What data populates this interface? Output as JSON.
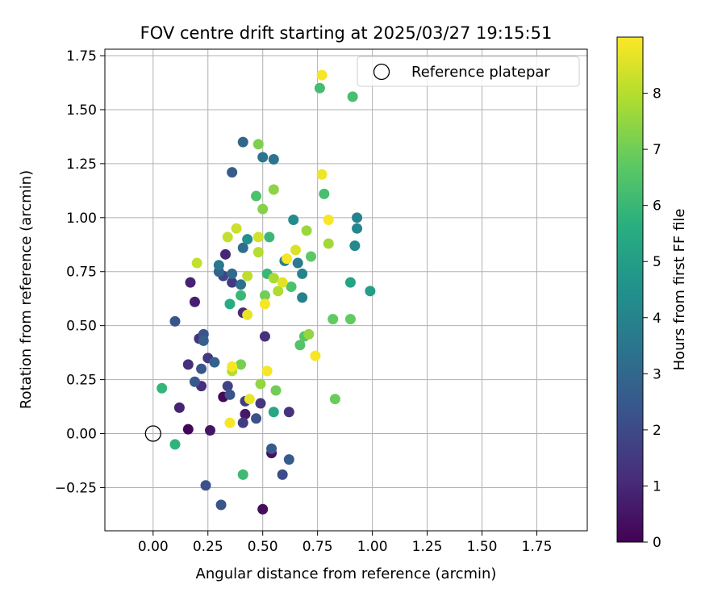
{
  "chart_data": {
    "type": "scatter",
    "title": "FOV centre drift starting at 2025/03/27 19:15:51",
    "xlabel": "Angular distance from reference (arcmin)",
    "ylabel": "Rotation from reference (arcmin)",
    "xlim": [
      -0.22,
      1.98
    ],
    "ylim": [
      -0.45,
      1.78
    ],
    "x_ticks": [
      0.0,
      0.25,
      0.5,
      0.75,
      1.0,
      1.25,
      1.5,
      1.75
    ],
    "x_tick_labels": [
      "0.00",
      "0.25",
      "0.50",
      "0.75",
      "1.00",
      "1.25",
      "1.50",
      "1.75"
    ],
    "y_ticks": [
      -0.25,
      0.0,
      0.25,
      0.5,
      0.75,
      1.0,
      1.25,
      1.5,
      1.75
    ],
    "y_tick_labels": [
      "−0.25",
      "0.00",
      "0.25",
      "0.50",
      "0.75",
      "1.00",
      "1.25",
      "1.50",
      "1.75"
    ],
    "grid": true,
    "legend": {
      "position": "top-right",
      "entries": [
        {
          "label": "Reference platepar",
          "marker": "open-circle",
          "x": 0.0,
          "y": 0.0
        }
      ]
    },
    "colorbar": {
      "label": "Hours from first FF file",
      "colormap": "viridis",
      "range": [
        0,
        9
      ],
      "ticks": [
        0,
        1,
        2,
        3,
        4,
        5,
        6,
        7,
        8
      ],
      "tick_labels": [
        "0",
        "1",
        "2",
        "3",
        "4",
        "5",
        "6",
        "7",
        "8"
      ]
    },
    "points": [
      {
        "x": 0.16,
        "y": 0.02,
        "h": 0.1
      },
      {
        "x": 0.32,
        "y": 0.17,
        "h": 0.2
      },
      {
        "x": 0.5,
        "y": -0.35,
        "h": 0.3
      },
      {
        "x": 0.54,
        "y": -0.09,
        "h": 0.4
      },
      {
        "x": 0.26,
        "y": 0.015,
        "h": 0.5
      },
      {
        "x": 0.42,
        "y": 0.09,
        "h": 0.6
      },
      {
        "x": 0.33,
        "y": 0.83,
        "h": 1.0
      },
      {
        "x": 0.19,
        "y": 0.61,
        "h": 0.8
      },
      {
        "x": 0.17,
        "y": 0.7,
        "h": 0.9
      },
      {
        "x": 0.12,
        "y": 0.12,
        "h": 0.9
      },
      {
        "x": 0.41,
        "y": 0.56,
        "h": 1.1
      },
      {
        "x": 0.16,
        "y": 0.32,
        "h": 1.2
      },
      {
        "x": 0.21,
        "y": 0.44,
        "h": 1.3
      },
      {
        "x": 0.49,
        "y": 0.14,
        "h": 1.4
      },
      {
        "x": 0.51,
        "y": 0.45,
        "h": 1.2
      },
      {
        "x": 0.62,
        "y": 0.1,
        "h": 1.3
      },
      {
        "x": 0.22,
        "y": 0.22,
        "h": 1.2
      },
      {
        "x": 0.36,
        "y": 0.7,
        "h": 1.5
      },
      {
        "x": 0.41,
        "y": 0.05,
        "h": 1.6
      },
      {
        "x": 0.25,
        "y": 0.35,
        "h": 1.5
      },
      {
        "x": 0.34,
        "y": 0.22,
        "h": 1.8
      },
      {
        "x": 0.42,
        "y": 0.15,
        "h": 1.7
      },
      {
        "x": 0.32,
        "y": 0.73,
        "h": 1.9
      },
      {
        "x": 0.59,
        "y": -0.19,
        "h": 2.1
      },
      {
        "x": 0.47,
        "y": 0.07,
        "h": 2.2
      },
      {
        "x": 0.35,
        "y": 0.18,
        "h": 2.3
      },
      {
        "x": 0.24,
        "y": -0.24,
        "h": 2.2
      },
      {
        "x": 0.31,
        "y": -0.33,
        "h": 2.4
      },
      {
        "x": 0.54,
        "y": -0.07,
        "h": 2.5
      },
      {
        "x": 0.62,
        "y": -0.12,
        "h": 2.6
      },
      {
        "x": 0.22,
        "y": 0.3,
        "h": 2.4
      },
      {
        "x": 0.23,
        "y": 0.46,
        "h": 2.4
      },
      {
        "x": 0.1,
        "y": 0.52,
        "h": 2.4
      },
      {
        "x": 0.19,
        "y": 0.24,
        "h": 2.5
      },
      {
        "x": 0.36,
        "y": 1.21,
        "h": 2.6
      },
      {
        "x": 0.23,
        "y": 0.43,
        "h": 2.7
      },
      {
        "x": 0.28,
        "y": 0.33,
        "h": 2.8
      },
      {
        "x": 0.3,
        "y": 0.75,
        "h": 2.9
      },
      {
        "x": 0.41,
        "y": 1.35,
        "h": 3.0
      },
      {
        "x": 0.36,
        "y": 0.74,
        "h": 3.1
      },
      {
        "x": 0.41,
        "y": 0.86,
        "h": 3.2
      },
      {
        "x": 0.4,
        "y": 0.69,
        "h": 3.3
      },
      {
        "x": 0.55,
        "y": 1.27,
        "h": 3.4
      },
      {
        "x": 0.5,
        "y": 1.28,
        "h": 3.5
      },
      {
        "x": 0.3,
        "y": 0.78,
        "h": 3.6
      },
      {
        "x": 0.66,
        "y": 0.79,
        "h": 3.7
      },
      {
        "x": 0.6,
        "y": 0.8,
        "h": 3.8
      },
      {
        "x": 0.68,
        "y": 0.63,
        "h": 3.9
      },
      {
        "x": 0.68,
        "y": 0.74,
        "h": 4.0
      },
      {
        "x": 0.93,
        "y": 1.0,
        "h": 4.0
      },
      {
        "x": 0.93,
        "y": 0.95,
        "h": 4.1
      },
      {
        "x": 0.92,
        "y": 0.87,
        "h": 4.2
      },
      {
        "x": 0.64,
        "y": 0.99,
        "h": 4.3
      },
      {
        "x": 0.43,
        "y": 0.9,
        "h": 4.5
      },
      {
        "x": 0.99,
        "y": 0.66,
        "h": 5.0
      },
      {
        "x": 0.9,
        "y": 0.7,
        "h": 5.2
      },
      {
        "x": 0.55,
        "y": 0.1,
        "h": 5.4
      },
      {
        "x": 0.35,
        "y": 0.6,
        "h": 5.6
      },
      {
        "x": 0.1,
        "y": -0.05,
        "h": 5.8
      },
      {
        "x": 0.04,
        "y": 0.21,
        "h": 5.9
      },
      {
        "x": 0.4,
        "y": 0.64,
        "h": 6.0
      },
      {
        "x": 0.52,
        "y": 0.74,
        "h": 6.0
      },
      {
        "x": 0.53,
        "y": 0.91,
        "h": 6.0
      },
      {
        "x": 0.41,
        "y": -0.19,
        "h": 6.1
      },
      {
        "x": 0.76,
        "y": 1.6,
        "h": 6.2
      },
      {
        "x": 0.91,
        "y": 1.56,
        "h": 6.3
      },
      {
        "x": 0.78,
        "y": 1.11,
        "h": 6.3
      },
      {
        "x": 0.47,
        "y": 1.1,
        "h": 6.4
      },
      {
        "x": 0.63,
        "y": 0.68,
        "h": 6.4
      },
      {
        "x": 0.67,
        "y": 0.41,
        "h": 6.5
      },
      {
        "x": 0.69,
        "y": 0.45,
        "h": 6.6
      },
      {
        "x": 0.72,
        "y": 0.82,
        "h": 6.7
      },
      {
        "x": 0.82,
        "y": 0.53,
        "h": 6.8
      },
      {
        "x": 0.9,
        "y": 0.53,
        "h": 6.8
      },
      {
        "x": 0.83,
        "y": 0.16,
        "h": 6.9
      },
      {
        "x": 0.56,
        "y": 0.2,
        "h": 7.0
      },
      {
        "x": 0.51,
        "y": 0.64,
        "h": 7.0
      },
      {
        "x": 0.4,
        "y": 0.32,
        "h": 7.1
      },
      {
        "x": 0.48,
        "y": 1.34,
        "h": 7.2
      },
      {
        "x": 0.5,
        "y": 1.04,
        "h": 7.3
      },
      {
        "x": 0.55,
        "y": 1.13,
        "h": 7.4
      },
      {
        "x": 0.49,
        "y": 0.23,
        "h": 7.5
      },
      {
        "x": 0.71,
        "y": 0.46,
        "h": 7.5
      },
      {
        "x": 0.7,
        "y": 0.94,
        "h": 7.6
      },
      {
        "x": 0.8,
        "y": 0.88,
        "h": 7.7
      },
      {
        "x": 0.55,
        "y": 0.72,
        "h": 7.8
      },
      {
        "x": 0.57,
        "y": 0.66,
        "h": 7.9
      },
      {
        "x": 0.36,
        "y": 0.29,
        "h": 8.0
      },
      {
        "x": 0.48,
        "y": 0.84,
        "h": 8.0
      },
      {
        "x": 0.43,
        "y": 0.73,
        "h": 8.1
      },
      {
        "x": 0.2,
        "y": 0.79,
        "h": 8.2
      },
      {
        "x": 0.34,
        "y": 0.91,
        "h": 8.2
      },
      {
        "x": 0.38,
        "y": 0.95,
        "h": 8.3
      },
      {
        "x": 0.48,
        "y": 0.91,
        "h": 8.4
      },
      {
        "x": 0.65,
        "y": 0.85,
        "h": 8.5
      },
      {
        "x": 0.59,
        "y": 0.7,
        "h": 8.6
      },
      {
        "x": 0.44,
        "y": 0.16,
        "h": 8.7
      },
      {
        "x": 0.43,
        "y": 0.55,
        "h": 8.7
      },
      {
        "x": 0.77,
        "y": 1.2,
        "h": 8.8
      },
      {
        "x": 0.77,
        "y": 1.66,
        "h": 8.9
      },
      {
        "x": 0.8,
        "y": 0.99,
        "h": 8.9
      },
      {
        "x": 0.61,
        "y": 0.81,
        "h": 8.9
      },
      {
        "x": 0.51,
        "y": 0.6,
        "h": 8.9
      },
      {
        "x": 0.74,
        "y": 0.36,
        "h": 8.9
      },
      {
        "x": 0.52,
        "y": 0.29,
        "h": 8.9
      },
      {
        "x": 0.36,
        "y": 0.31,
        "h": 8.9
      },
      {
        "x": 0.35,
        "y": 0.05,
        "h": 8.9
      }
    ]
  }
}
